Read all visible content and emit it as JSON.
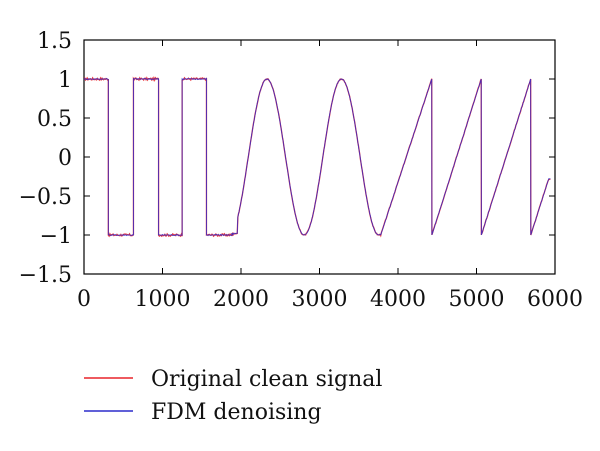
{
  "chart_data": {
    "type": "line",
    "title": "",
    "xlabel": "",
    "ylabel": "",
    "xlim": [
      0,
      6000
    ],
    "ylim": [
      -1.5,
      1.5
    ],
    "xticks": [
      0,
      1000,
      2000,
      3000,
      4000,
      5000,
      6000
    ],
    "xtick_labels": [
      "0",
      "1000",
      "2000",
      "3000",
      "4000",
      "5000",
      "6000"
    ],
    "yticks": [
      1.5,
      1,
      0.5,
      0,
      -0.5,
      -1,
      -1.5
    ],
    "ytick_labels": [
      "1.5",
      "1",
      "0.5",
      "0",
      "−0.5",
      "−1",
      "−1.5"
    ],
    "grid": false,
    "legend_position": "below",
    "series": [
      {
        "name": "Original clean signal",
        "color": "#e8232a",
        "segments": [
          {
            "shape": "square",
            "x_start": 0,
            "x_end": 2000,
            "transitions": [
              0,
              310,
              630,
              950,
              1250,
              1560,
              2000
            ],
            "levels": [
              1,
              -1,
              1,
              -1,
              1,
              -1
            ],
            "start_level": 1
          },
          {
            "shape": "sine",
            "x_start": 2000,
            "x_end": 4000,
            "amplitude": 1,
            "period": 950,
            "peaks": [
              2330,
              3300
            ],
            "troughs": [
              2850,
              3780
            ]
          },
          {
            "shape": "sawtooth",
            "x_start": 3780,
            "x_end": 5950,
            "resets": [
              4430,
              5060,
              5690
            ],
            "low": -1,
            "high": 1,
            "end_value": -0.28
          }
        ]
      },
      {
        "name": "FDM denoising",
        "color": "#2b2bcc",
        "segments": [
          {
            "shape": "square",
            "x_start": 0,
            "x_end": 2000,
            "transitions": [
              0,
              310,
              630,
              950,
              1250,
              1560,
              2000
            ],
            "levels": [
              1,
              -1,
              1,
              -1,
              1,
              -1
            ],
            "start_level": 1
          },
          {
            "shape": "sine",
            "x_start": 2000,
            "x_end": 4000,
            "amplitude": 1,
            "period": 950,
            "peaks": [
              2330,
              3300
            ],
            "troughs": [
              2850,
              3780
            ]
          },
          {
            "shape": "sawtooth",
            "x_start": 3780,
            "x_end": 5950,
            "resets": [
              4430,
              5060,
              5690
            ],
            "low": -1,
            "high": 1,
            "end_value": -0.28
          }
        ]
      }
    ]
  }
}
